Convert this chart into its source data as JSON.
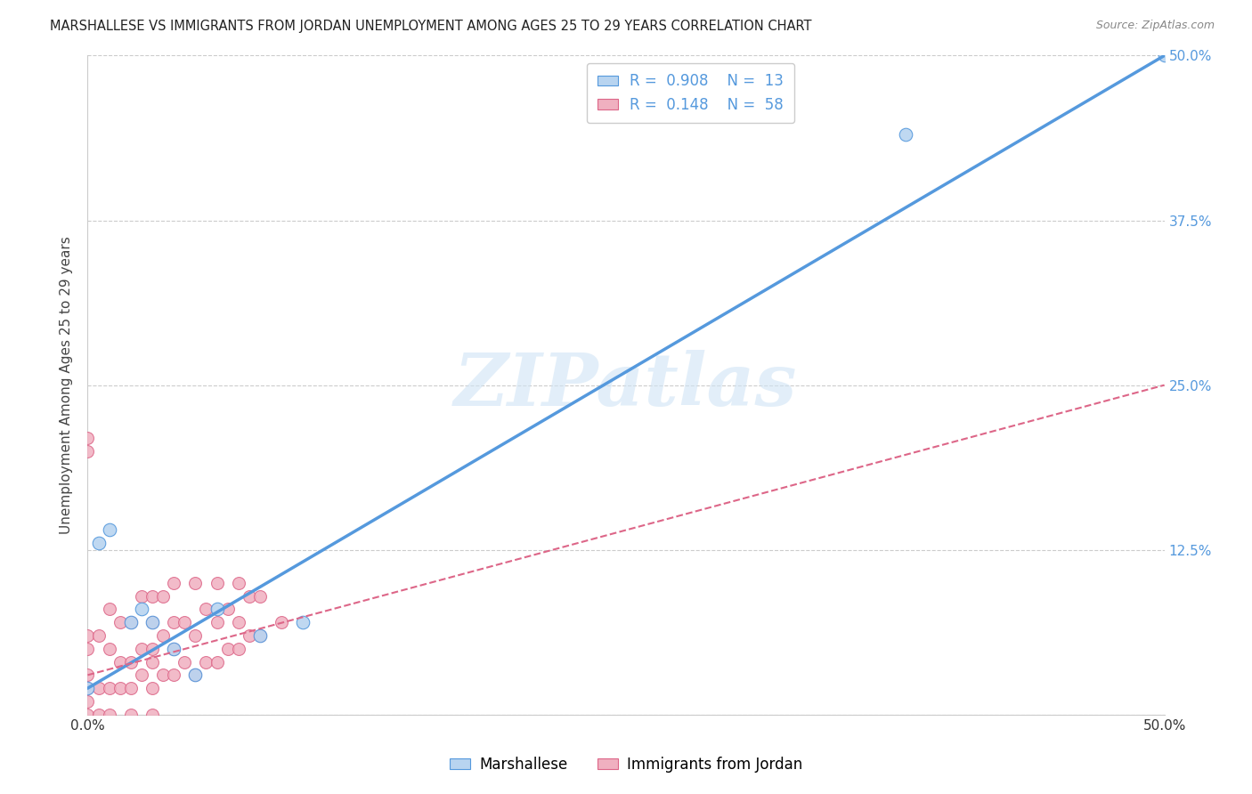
{
  "title": "MARSHALLESE VS IMMIGRANTS FROM JORDAN UNEMPLOYMENT AMONG AGES 25 TO 29 YEARS CORRELATION CHART",
  "source": "Source: ZipAtlas.com",
  "ylabel": "Unemployment Among Ages 25 to 29 years",
  "xlim": [
    0.0,
    0.5
  ],
  "ylim": [
    0.0,
    0.5
  ],
  "xticks": [
    0.0,
    0.1,
    0.2,
    0.3,
    0.4,
    0.5
  ],
  "yticks": [
    0.0,
    0.125,
    0.25,
    0.375,
    0.5
  ],
  "ytick_labels": [
    "",
    "12.5%",
    "25.0%",
    "37.5%",
    "50.0%"
  ],
  "xtick_labels": [
    "0.0%",
    "",
    "",
    "",
    "",
    "50.0%"
  ],
  "marshallese_R": 0.908,
  "marshallese_N": 13,
  "jordan_R": 0.148,
  "jordan_N": 58,
  "marshallese_color": "#b8d4f0",
  "jordan_color": "#f0b0c0",
  "marshallese_line_color": "#5599dd",
  "jordan_line_color": "#dd6688",
  "marshallese_scatter_x": [
    0.0,
    0.005,
    0.01,
    0.02,
    0.025,
    0.03,
    0.04,
    0.05,
    0.06,
    0.08,
    0.1,
    0.38,
    0.5
  ],
  "marshallese_scatter_y": [
    0.02,
    0.13,
    0.14,
    0.07,
    0.08,
    0.07,
    0.05,
    0.03,
    0.08,
    0.06,
    0.07,
    0.44,
    0.5
  ],
  "jordan_scatter_x": [
    0.0,
    0.0,
    0.0,
    0.0,
    0.0,
    0.0,
    0.0,
    0.0,
    0.005,
    0.005,
    0.005,
    0.01,
    0.01,
    0.01,
    0.01,
    0.015,
    0.015,
    0.015,
    0.02,
    0.02,
    0.02,
    0.02,
    0.025,
    0.025,
    0.025,
    0.03,
    0.03,
    0.03,
    0.03,
    0.03,
    0.03,
    0.035,
    0.035,
    0.035,
    0.04,
    0.04,
    0.04,
    0.04,
    0.045,
    0.045,
    0.05,
    0.05,
    0.05,
    0.055,
    0.055,
    0.06,
    0.06,
    0.06,
    0.065,
    0.065,
    0.07,
    0.07,
    0.07,
    0.075,
    0.075,
    0.08,
    0.08,
    0.09
  ],
  "jordan_scatter_y": [
    0.0,
    0.01,
    0.02,
    0.03,
    0.05,
    0.06,
    0.2,
    0.21,
    0.0,
    0.02,
    0.06,
    0.0,
    0.02,
    0.05,
    0.08,
    0.02,
    0.04,
    0.07,
    0.0,
    0.02,
    0.04,
    0.07,
    0.03,
    0.05,
    0.09,
    0.0,
    0.02,
    0.04,
    0.05,
    0.07,
    0.09,
    0.03,
    0.06,
    0.09,
    0.03,
    0.05,
    0.07,
    0.1,
    0.04,
    0.07,
    0.03,
    0.06,
    0.1,
    0.04,
    0.08,
    0.04,
    0.07,
    0.1,
    0.05,
    0.08,
    0.05,
    0.07,
    0.1,
    0.06,
    0.09,
    0.06,
    0.09,
    0.07
  ],
  "marshallese_line_x": [
    0.0,
    0.5
  ],
  "marshallese_line_y": [
    0.02,
    0.5
  ],
  "jordan_line_x": [
    0.0,
    0.5
  ],
  "jordan_line_y": [
    0.03,
    0.25
  ],
  "background_color": "#ffffff",
  "grid_color": "#cccccc",
  "watermark_text": "ZIPatlas",
  "watermark_color": "#d0e4f5",
  "watermark_alpha": 0.6
}
